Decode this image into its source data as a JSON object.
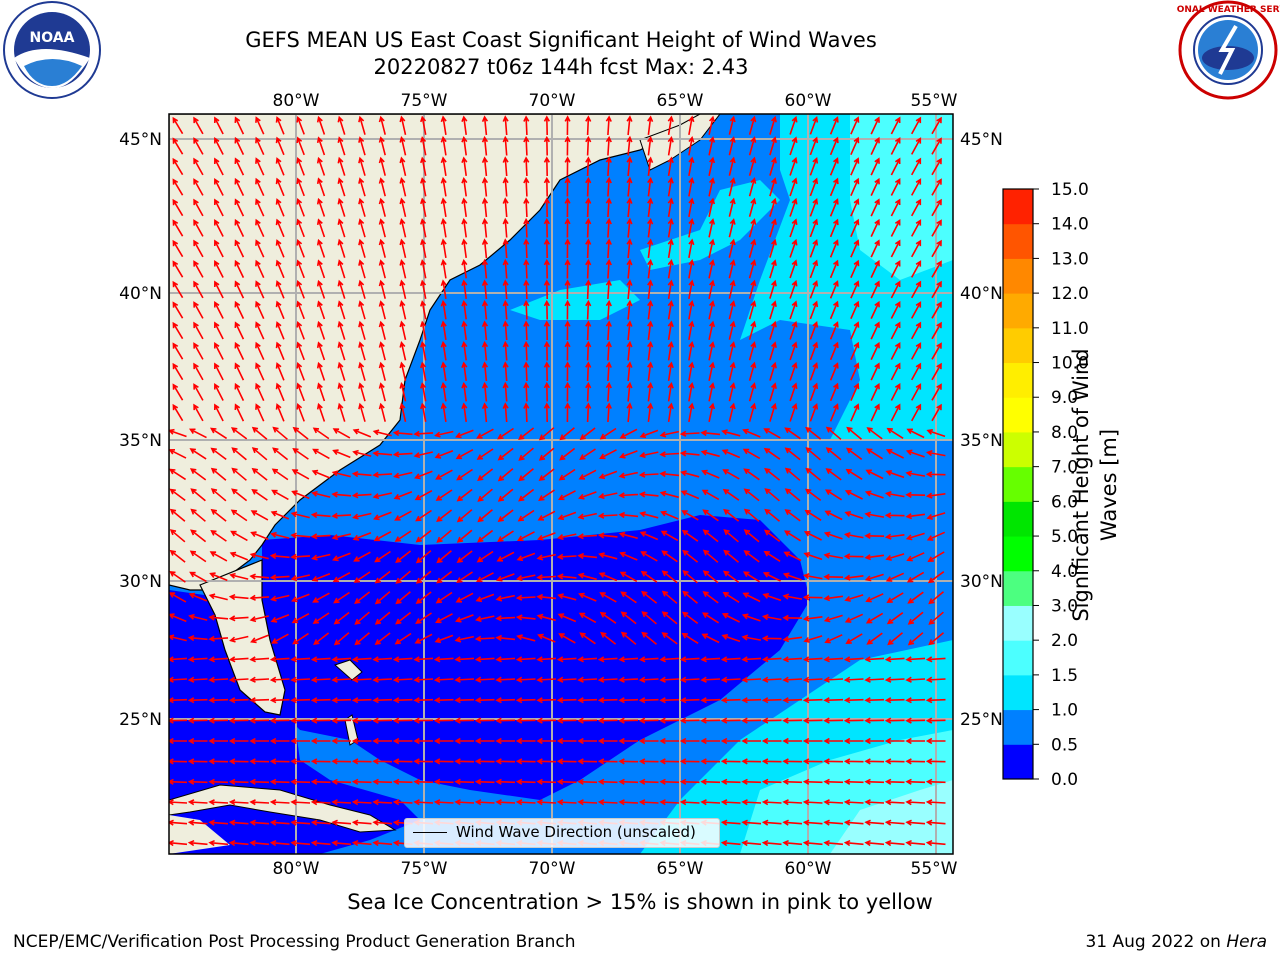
{
  "title_line1": "GEFS MEAN US East Coast Significant Height of Wind Waves",
  "title_line2": "20220827 t06z 144h fcst   Max: 2.43",
  "logos": {
    "left": "NOAA",
    "right": "NATIONAL WEATHER SERVICE"
  },
  "lon_ticks": [
    "80°W",
    "75°W",
    "70°W",
    "65°W",
    "60°W",
    "55°W"
  ],
  "lat_ticks": [
    "45°N",
    "40°N",
    "35°N",
    "30°N",
    "25°N"
  ],
  "legend_label": "Wind Wave Direction (unscaled)",
  "colorbar": {
    "label": "Significant Height of Wind Waves [m]",
    "ticks": [
      "0.0",
      "0.5",
      "1.0",
      "1.5",
      "2.0",
      "3.0",
      "4.0",
      "5.0",
      "6.0",
      "7.0",
      "8.0",
      "9.0",
      "10.0",
      "11.0",
      "12.0",
      "13.0",
      "14.0",
      "15.0"
    ],
    "colors": [
      "#0000ff",
      "#0080ff",
      "#00e5ff",
      "#4cffff",
      "#99ffff",
      "#4cff80",
      "#00ff00",
      "#00e600",
      "#66ff00",
      "#ccff00",
      "#ffff00",
      "#ffee00",
      "#ffcc00",
      "#ffaa00",
      "#ff8800",
      "#ff5500",
      "#ff2200",
      "#ff0000"
    ]
  },
  "colors": {
    "land": "#efeedd",
    "arrows": "#ff0000",
    "grid": "#b0b0b0"
  },
  "sea_ice_note": "Sea Ice Concentration > 15% is shown in pink to yellow",
  "footer_left": "NCEP/EMC/Verification Post Processing Product Generation Branch",
  "footer_date": "31 Aug 2022 on ",
  "footer_host": "Hera"
}
